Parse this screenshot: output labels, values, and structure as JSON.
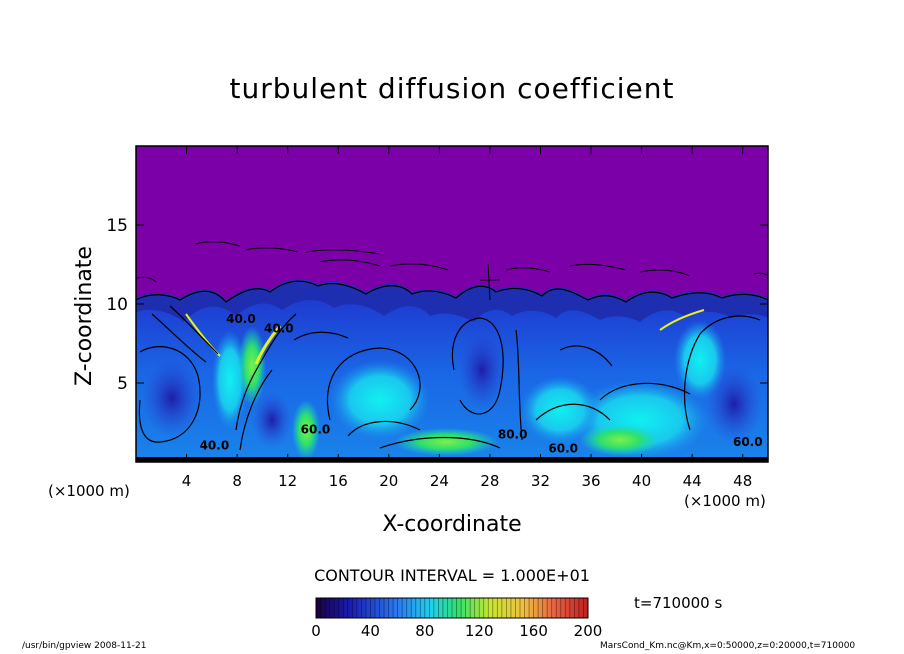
{
  "chart_data": {
    "type": "heatmap",
    "title": "turbulent diffusion coefficient",
    "xlabel": "X-coordinate",
    "ylabel": "Z-coordinate",
    "x_unit": "(×1000 m)",
    "xlim": [
      0,
      50
    ],
    "ylim": [
      0,
      20
    ],
    "x_ticks": [
      4,
      8,
      12,
      16,
      20,
      24,
      28,
      32,
      36,
      40,
      44,
      48
    ],
    "y_ticks": [
      5,
      10,
      15
    ],
    "contour_interval": "CONTOUR INTERVAL = 1.000E+01",
    "contour_labels": [
      {
        "text": "40.0",
        "x": 6.2,
        "z": 0.8
      },
      {
        "text": "40.0",
        "x": 8.3,
        "z": 8.8
      },
      {
        "text": "40.0",
        "x": 11.3,
        "z": 8.2
      },
      {
        "text": "60.0",
        "x": 14.2,
        "z": 1.8
      },
      {
        "text": "60.0",
        "x": 33.8,
        "z": 0.6
      },
      {
        "text": "60.0",
        "x": 48.4,
        "z": 1.0
      },
      {
        "text": "80.0",
        "x": 29.8,
        "z": 1.5
      }
    ],
    "colorbar": {
      "min": 0,
      "max": 200,
      "ticks": [
        0,
        40,
        80,
        120,
        160,
        200
      ]
    },
    "time_label": "t=710000 s",
    "regions": {
      "upper_value_range": "0-10",
      "boundary_height_range": [
        8.5,
        11.5
      ],
      "high_value_zones": [
        {
          "x_center": 26,
          "z_center": 1.4
        },
        {
          "x_center": 38,
          "z_center": 2.0
        }
      ]
    }
  },
  "footer": {
    "program": "/usr/bin/gpview   2008-11-21",
    "source": "MarsCond_Km.nc@Km,x=0:50000,z=0:20000,t=710000"
  },
  "colors": {
    "upper_layer": "#7b00a8",
    "boundary": "#1e2eb0",
    "mid": "#1a6ee8",
    "light": "#1aa8e8",
    "cyan": "#00e4ee",
    "green": "#35e050",
    "yellow": "#e8ef20"
  }
}
